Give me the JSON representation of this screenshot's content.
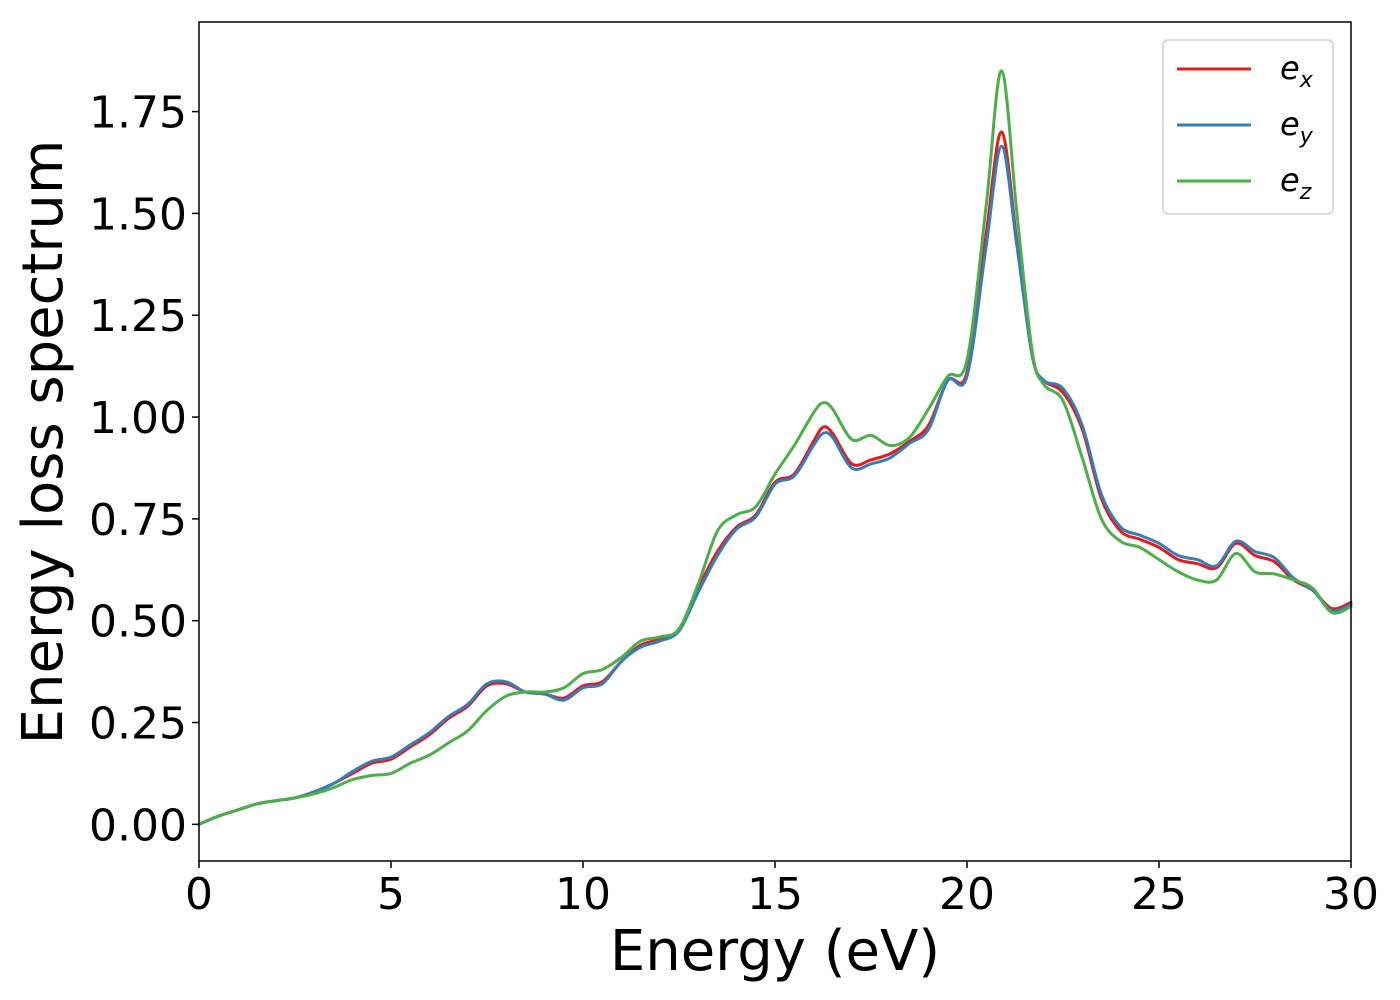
{
  "chart_data": {
    "type": "line",
    "title": "",
    "xlabel": "Energy (eV)",
    "ylabel": "Energy loss spectrum",
    "xlim": [
      0,
      30
    ],
    "ylim": [
      -0.09,
      1.97
    ],
    "x_ticks": [
      "0",
      "5",
      "10",
      "15",
      "20",
      "25",
      "30"
    ],
    "y_ticks": [
      "0.00",
      "0.25",
      "0.50",
      "0.75",
      "1.00",
      "1.25",
      "1.50",
      "1.75"
    ],
    "grid": false,
    "legend_position": "top-right",
    "x": [
      0,
      0.5,
      1,
      1.5,
      2,
      2.5,
      3,
      3.5,
      4,
      4.5,
      5,
      5.5,
      6,
      6.5,
      7,
      7.5,
      8,
      8.5,
      9,
      9.5,
      10,
      10.5,
      11,
      11.5,
      12,
      12.5,
      13,
      13.5,
      14,
      14.5,
      15,
      15.5,
      16,
      16.25,
      16.5,
      17,
      17.5,
      18,
      18.5,
      19,
      19.5,
      20,
      20.5,
      20.9,
      21.3,
      21.7,
      22,
      22.5,
      23,
      23.5,
      24,
      24.5,
      25,
      25.5,
      26,
      26.5,
      27,
      27.5,
      28,
      28.5,
      29,
      29.5,
      30
    ],
    "series": [
      {
        "name": "e",
        "subscript": "x",
        "color": "#e41a1c",
        "values": [
          0.0,
          0.02,
          0.035,
          0.05,
          0.058,
          0.065,
          0.08,
          0.1,
          0.125,
          0.15,
          0.16,
          0.19,
          0.22,
          0.26,
          0.29,
          0.34,
          0.345,
          0.325,
          0.32,
          0.31,
          0.34,
          0.35,
          0.4,
          0.44,
          0.455,
          0.48,
          0.58,
          0.67,
          0.73,
          0.76,
          0.84,
          0.86,
          0.94,
          0.975,
          0.96,
          0.885,
          0.895,
          0.91,
          0.94,
          0.98,
          1.09,
          1.11,
          1.45,
          1.7,
          1.43,
          1.15,
          1.09,
          1.06,
          0.97,
          0.8,
          0.72,
          0.7,
          0.68,
          0.65,
          0.64,
          0.63,
          0.69,
          0.66,
          0.645,
          0.6,
          0.575,
          0.53,
          0.545
        ]
      },
      {
        "name": "e",
        "subscript": "y",
        "color": "#377eb8",
        "values": [
          0.0,
          0.02,
          0.035,
          0.05,
          0.058,
          0.065,
          0.08,
          0.1,
          0.13,
          0.155,
          0.165,
          0.195,
          0.225,
          0.265,
          0.295,
          0.345,
          0.35,
          0.325,
          0.32,
          0.305,
          0.335,
          0.345,
          0.4,
          0.435,
          0.45,
          0.475,
          0.57,
          0.66,
          0.725,
          0.755,
          0.835,
          0.855,
          0.93,
          0.96,
          0.95,
          0.875,
          0.885,
          0.9,
          0.935,
          0.97,
          1.09,
          1.1,
          1.42,
          1.665,
          1.42,
          1.15,
          1.09,
          1.07,
          0.98,
          0.81,
          0.73,
          0.71,
          0.69,
          0.66,
          0.65,
          0.635,
          0.695,
          0.67,
          0.655,
          0.605,
          0.575,
          0.525,
          0.54
        ]
      },
      {
        "name": "e",
        "subscript": "z",
        "color": "#4daf4a",
        "values": [
          0.0,
          0.02,
          0.035,
          0.05,
          0.058,
          0.065,
          0.075,
          0.09,
          0.11,
          0.12,
          0.125,
          0.15,
          0.17,
          0.2,
          0.23,
          0.28,
          0.315,
          0.325,
          0.325,
          0.335,
          0.37,
          0.38,
          0.41,
          0.45,
          0.46,
          0.48,
          0.59,
          0.72,
          0.76,
          0.78,
          0.86,
          0.93,
          1.01,
          1.035,
          1.02,
          0.945,
          0.955,
          0.93,
          0.95,
          1.02,
          1.1,
          1.14,
          1.52,
          1.85,
          1.5,
          1.16,
          1.08,
          1.04,
          0.9,
          0.75,
          0.695,
          0.68,
          0.65,
          0.62,
          0.6,
          0.6,
          0.665,
          0.62,
          0.615,
          0.6,
          0.58,
          0.52,
          0.535
        ]
      }
    ]
  }
}
